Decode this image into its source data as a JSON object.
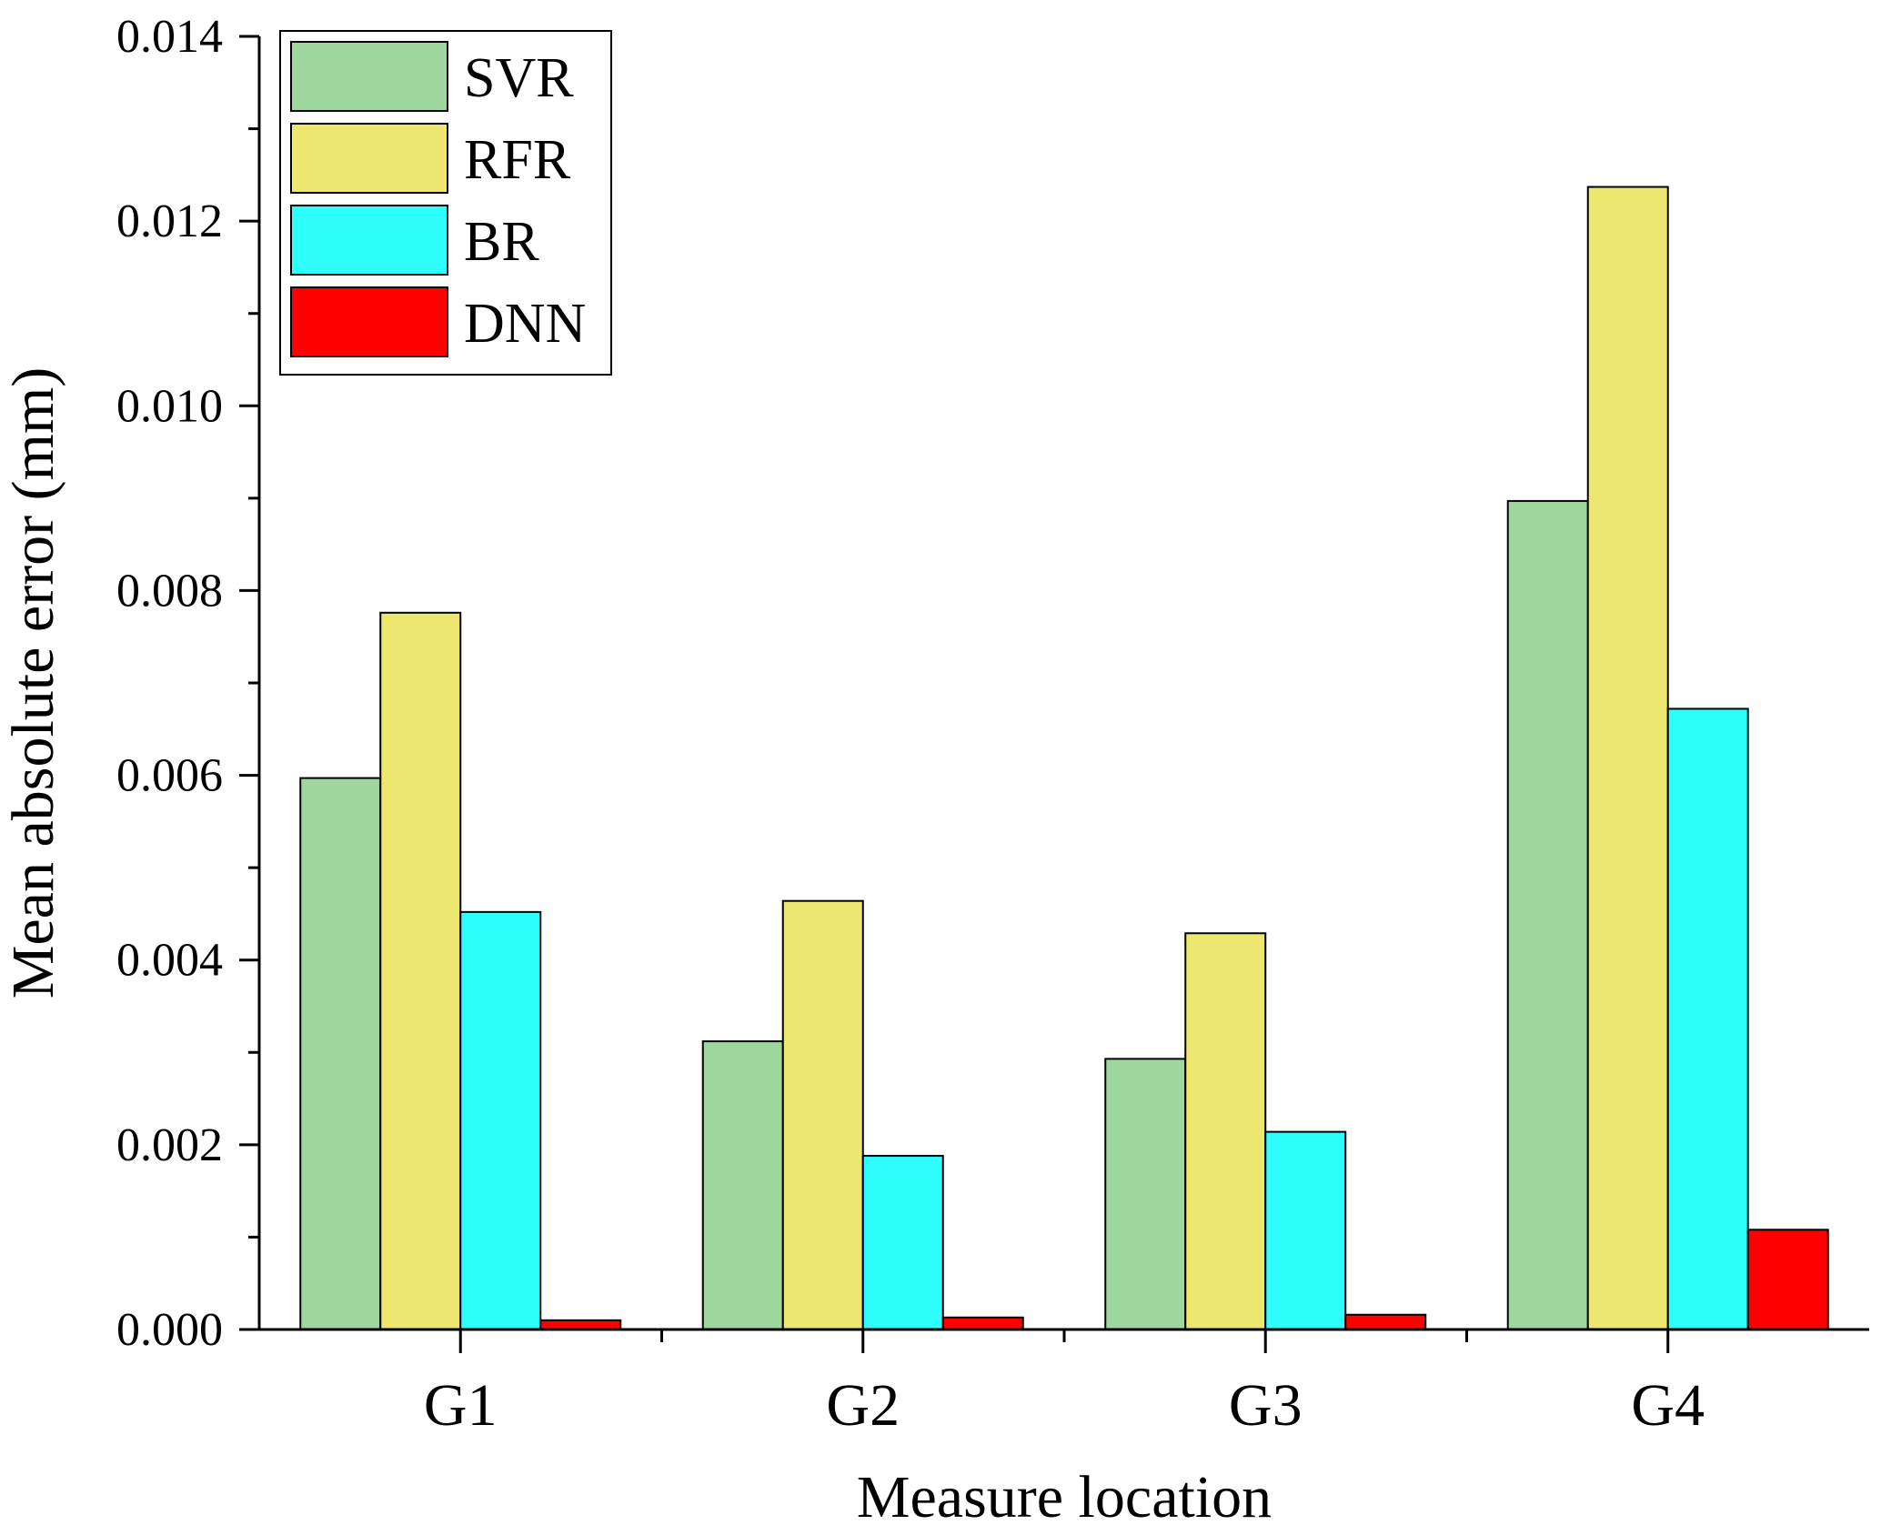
{
  "chart_data": {
    "type": "bar",
    "title": "",
    "xlabel": "Measure location",
    "ylabel": "Mean absolute error (mm)",
    "categories": [
      "G1",
      "G2",
      "G3",
      "G4"
    ],
    "ylim": [
      0,
      0.014
    ],
    "yticks": [
      0.0,
      0.002,
      0.004,
      0.006,
      0.008,
      0.01,
      0.012,
      0.014
    ],
    "ytick_labels": [
      "0.000",
      "0.002",
      "0.004",
      "0.006",
      "0.008",
      "0.010",
      "0.012",
      "0.014"
    ],
    "grid": false,
    "legend_position": "top-left",
    "series": [
      {
        "name": "SVR",
        "color": "#9fd89f",
        "values": [
          0.00597,
          0.00312,
          0.00293,
          0.00897
        ]
      },
      {
        "name": "RFR",
        "color": "#ede770",
        "values": [
          0.00776,
          0.00464,
          0.00429,
          0.01237
        ]
      },
      {
        "name": "BR",
        "color": "#2efefe",
        "values": [
          0.00452,
          0.00188,
          0.00214,
          0.00672
        ]
      },
      {
        "name": "DNN",
        "color": "#ff0000",
        "values": [
          0.0001,
          0.00013,
          0.00016,
          0.00108
        ]
      }
    ]
  }
}
